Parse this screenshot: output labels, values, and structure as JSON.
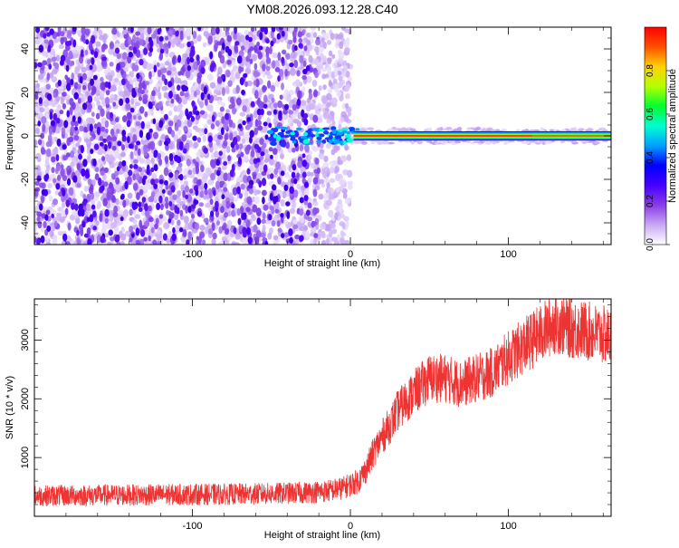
{
  "title": "YM08.2026.093.12.28.C40",
  "chart_data": [
    {
      "type": "heatmap",
      "xlabel": "Height of straight line (km)",
      "ylabel": "Frequency (Hz)",
      "xlim": [
        -200,
        165
      ],
      "ylim": [
        -50,
        50
      ],
      "x_ticks": [
        -100,
        0,
        100
      ],
      "y_ticks": [
        -40,
        -20,
        0,
        20,
        40
      ],
      "colorbar": {
        "label": "Normalized spectral amplitude",
        "range": [
          0,
          1
        ],
        "ticks": [
          "0.0",
          "0.2",
          "0.4",
          "0.6",
          "0.8"
        ],
        "colors": [
          "#ffffff",
          "#c9a8f3",
          "#8a3be6",
          "#4600ff",
          "#0000ff",
          "#00a0ff",
          "#00ffd0",
          "#00ff30",
          "#b4ff00",
          "#ffd200",
          "#ff5000",
          "#ff0000"
        ]
      },
      "features": {
        "noise_region_x": [
          -200,
          0
        ],
        "signal_line_x": [
          0,
          165
        ],
        "signal_frequency_hz": 0
      }
    },
    {
      "type": "line",
      "xlabel": "Height of straight line (km)",
      "ylabel": "SNR (10 * v/v)",
      "xlim": [
        -200,
        165
      ],
      "ylim": [
        0,
        3700
      ],
      "x_ticks": [
        -100,
        0,
        100
      ],
      "y_ticks": [
        1000,
        2000,
        3000
      ],
      "color": "#ee3333",
      "series": [
        {
          "name": "SNR",
          "x": [
            -200,
            -150,
            -100,
            -60,
            -30,
            -15,
            -5,
            5,
            10,
            15,
            20,
            25,
            30,
            40,
            50,
            60,
            70,
            75,
            80,
            90,
            100,
            110,
            120,
            125,
            130,
            140,
            150,
            165
          ],
          "y": [
            350,
            360,
            370,
            380,
            400,
            430,
            480,
            600,
            800,
            1100,
            1350,
            1550,
            1800,
            2100,
            2350,
            2350,
            2250,
            2300,
            2350,
            2450,
            2700,
            2900,
            3100,
            3200,
            3300,
            3200,
            3150,
            3050
          ]
        }
      ]
    }
  ]
}
